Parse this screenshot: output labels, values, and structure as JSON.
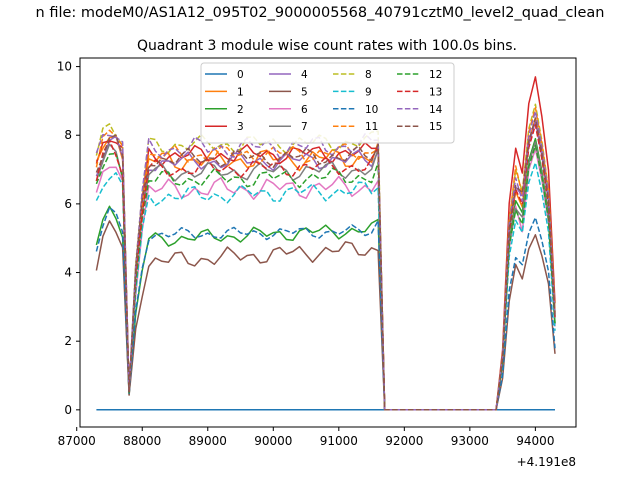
{
  "chart_data": {
    "type": "line",
    "suptitle": "n file: modeM0/AS1A12_095T02_9000005568_40791cztM0_level2_quad_clean",
    "title": "Quadrant 3 module wise count rates with 100.0s bins.",
    "xlabel": "",
    "ylabel": "",
    "x_offset_text": "+4.191e8",
    "xlim": [
      87050,
      94620
    ],
    "ylim": [
      -0.5,
      10.25
    ],
    "x_ticks": [
      87000,
      88000,
      89000,
      90000,
      91000,
      92000,
      93000,
      94000
    ],
    "x_tick_labels": [
      "87000",
      "88000",
      "89000",
      "90000",
      "91000",
      "92000",
      "93000",
      "94000"
    ],
    "y_ticks": [
      0,
      2,
      4,
      6,
      8,
      10
    ],
    "y_tick_labels": [
      "0",
      "2",
      "4",
      "6",
      "8",
      "10"
    ],
    "grid": false,
    "legend": {
      "placement": "upper-center",
      "columns": 4
    },
    "series": [
      {
        "name": "0",
        "color": "#1f77b4",
        "dash": "solid",
        "base": 0.0,
        "amp": 0.0,
        "ramp": 0.0,
        "peak": 0.0,
        "phase": 0
      },
      {
        "name": "1",
        "color": "#ff7f0e",
        "dash": "solid",
        "base": 7.25,
        "amp": 0.35,
        "ramp": 0.1,
        "peak": 8.5,
        "phase": 1
      },
      {
        "name": "2",
        "color": "#2ca02c",
        "dash": "solid",
        "base": 4.95,
        "amp": 0.25,
        "ramp": 0.3,
        "peak": 7.9,
        "phase": 2
      },
      {
        "name": "3",
        "color": "#d62728",
        "dash": "solid",
        "base": 7.4,
        "amp": 0.3,
        "ramp": 0.1,
        "peak": 9.7,
        "phase": 3
      },
      {
        "name": "4",
        "color": "#9467bd",
        "dash": "solid",
        "base": 7.2,
        "amp": 0.3,
        "ramp": 0.1,
        "peak": 8.4,
        "phase": 4
      },
      {
        "name": "5",
        "color": "#8c564b",
        "dash": "solid",
        "base": 4.3,
        "amp": 0.3,
        "ramp": 0.4,
        "peak": 5.1,
        "phase": 5
      },
      {
        "name": "6",
        "color": "#e377c2",
        "dash": "solid",
        "base": 6.4,
        "amp": 0.35,
        "ramp": 0.1,
        "peak": 7.6,
        "phase": 6
      },
      {
        "name": "7",
        "color": "#7f7f7f",
        "dash": "solid",
        "base": 6.9,
        "amp": 0.3,
        "ramp": 0.1,
        "peak": 7.8,
        "phase": 7
      },
      {
        "name": "8",
        "color": "#bcbd22",
        "dash": "dashed",
        "base": 7.7,
        "amp": 0.3,
        "ramp": 0.1,
        "peak": 8.9,
        "phase": 8
      },
      {
        "name": "9",
        "color": "#17becf",
        "dash": "dashed",
        "base": 6.2,
        "amp": 0.3,
        "ramp": 0.2,
        "peak": 7.2,
        "phase": 9
      },
      {
        "name": "10",
        "color": "#1f77b4",
        "dash": "dashed",
        "base": 5.1,
        "amp": 0.2,
        "ramp": 0.1,
        "peak": 5.6,
        "phase": 10
      },
      {
        "name": "11",
        "color": "#ff7f0e",
        "dash": "dashed",
        "base": 7.4,
        "amp": 0.3,
        "ramp": 0.1,
        "peak": 8.8,
        "phase": 11
      },
      {
        "name": "12",
        "color": "#2ca02c",
        "dash": "dashed",
        "base": 6.7,
        "amp": 0.3,
        "ramp": 0.1,
        "peak": 7.7,
        "phase": 12
      },
      {
        "name": "13",
        "color": "#d62728",
        "dash": "dashed",
        "base": 7.0,
        "amp": 0.3,
        "ramp": 0.1,
        "peak": 8.3,
        "phase": 13
      },
      {
        "name": "14",
        "color": "#9467bd",
        "dash": "dashed",
        "base": 7.6,
        "amp": 0.35,
        "ramp": 0.1,
        "peak": 8.7,
        "phase": 14
      },
      {
        "name": "15",
        "color": "#8c564b",
        "dash": "dashed",
        "base": 7.3,
        "amp": 0.3,
        "ramp": 0.1,
        "peak": 8.5,
        "phase": 15
      }
    ]
  }
}
